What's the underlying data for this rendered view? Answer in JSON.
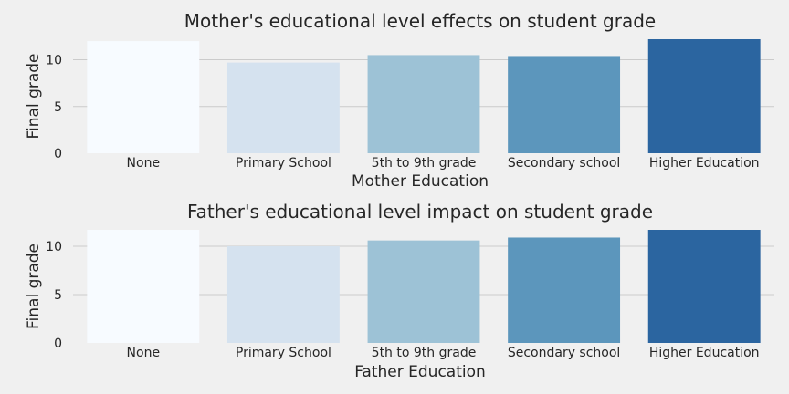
{
  "chart_data": [
    {
      "type": "bar",
      "title": "Mother's educational level effects on student grade",
      "xlabel": "Mother Education",
      "ylabel": "Final grade",
      "categories": [
        "None",
        "Primary School",
        "5th to 9th grade",
        "Secondary school",
        "Higher Education"
      ],
      "values": [
        12.0,
        9.7,
        10.5,
        10.4,
        12.2
      ],
      "colors": [
        "#f7fbff",
        "#d5e2ef",
        "#9dc2d6",
        "#5c96bc",
        "#2b65a0"
      ],
      "ylim": [
        0,
        12.2
      ],
      "yticks": [
        0,
        5,
        10
      ],
      "grid": true
    },
    {
      "type": "bar",
      "title": "Father's educational level impact on student grade",
      "xlabel": "Father Education",
      "ylabel": "Final grade",
      "categories": [
        "None",
        "Primary School",
        "5th to 9th grade",
        "Secondary school",
        "Higher Education"
      ],
      "values": [
        11.7,
        10.0,
        10.6,
        10.9,
        11.7
      ],
      "colors": [
        "#f7fbff",
        "#d5e2ef",
        "#9dc2d6",
        "#5c96bc",
        "#2b65a0"
      ],
      "ylim": [
        0,
        11.7
      ],
      "yticks": [
        0,
        5,
        10
      ],
      "grid": true
    }
  ]
}
